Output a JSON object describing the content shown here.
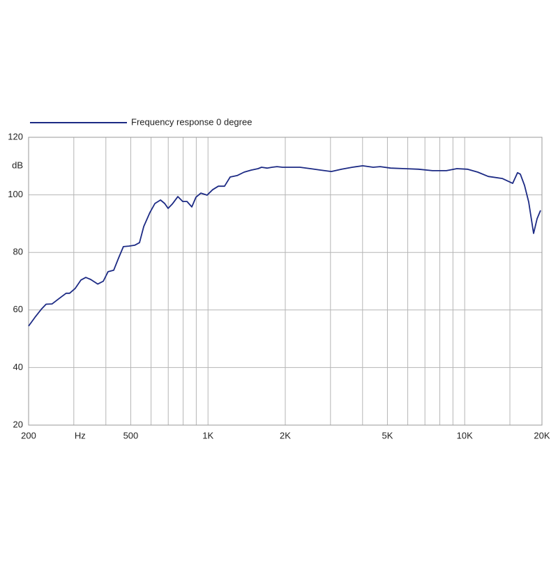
{
  "chart_data": {
    "type": "line",
    "x_scale": "log",
    "grid": true,
    "legend": "top-left",
    "y_label": "dB",
    "xlim": [
      200,
      20000
    ],
    "ylim": [
      20,
      120
    ],
    "yticks": [
      20,
      40,
      60,
      80,
      100,
      120
    ],
    "xticks": [
      200,
      {
        "value": 300,
        "label": "Hz"
      },
      {
        "value": 400,
        "label": null
      },
      500,
      {
        "value": 600,
        "label": null
      },
      {
        "value": 700,
        "label": null
      },
      {
        "value": 800,
        "label": null
      },
      {
        "value": 900,
        "label": null
      },
      {
        "value": 1000,
        "label": "1K"
      },
      {
        "value": 2000,
        "label": "2K"
      },
      {
        "value": 3000,
        "label": null
      },
      {
        "value": 4000,
        "label": null
      },
      {
        "value": 5000,
        "label": "5K"
      },
      {
        "value": 6000,
        "label": null
      },
      {
        "value": 7000,
        "label": null
      },
      {
        "value": 8000,
        "label": null
      },
      {
        "value": 9000,
        "label": null
      },
      {
        "value": 10000,
        "label": "10K"
      },
      {
        "value": 15000,
        "label": null
      },
      {
        "value": 20000,
        "label": "20K"
      }
    ],
    "x": [
      200,
      212,
      225,
      234,
      247,
      263,
      280,
      289,
      304,
      320,
      334,
      349,
      372,
      391,
      408,
      429,
      448,
      468,
      492,
      518,
      541,
      562,
      594,
      621,
      653,
      678,
      699,
      726,
      763,
      797,
      828,
      865,
      898,
      938,
      992,
      1043,
      1097,
      1160,
      1220,
      1299,
      1383,
      1472,
      1567,
      1617,
      1699,
      1776,
      1856,
      1950,
      2076,
      2281,
      2506,
      2752,
      3022,
      3320,
      3648,
      4006,
      4400,
      4686,
      5146,
      5830,
      6608,
      7488,
      8488,
      9324,
      10240,
      11246,
      12356,
      14002,
      15378,
      16070,
      16478,
      17108,
      17762,
      18556,
      19146,
      19752
    ],
    "series": [
      {
        "name": "Frequency response 0 degree",
        "color": "#1c2a84",
        "values": [
          54.4,
          57.5,
          60.4,
          62,
          62.1,
          64,
          65.8,
          65.8,
          67.5,
          70.4,
          71.3,
          70.6,
          69,
          70,
          73.3,
          73.8,
          78,
          82,
          82.2,
          82.5,
          83.4,
          89,
          93.9,
          97,
          98.2,
          97,
          95.3,
          96.8,
          99.4,
          97.7,
          97.7,
          95.8,
          99.2,
          100.6,
          99.9,
          101.8,
          103,
          103,
          106.2,
          106.7,
          107.9,
          108.6,
          109.1,
          109.6,
          109.3,
          109.6,
          109.8,
          109.6,
          109.6,
          109.6,
          109.1,
          108.6,
          108.1,
          108.9,
          109.6,
          110.1,
          109.6,
          109.8,
          109.3,
          109.1,
          108.9,
          108.4,
          108.4,
          109.1,
          108.9,
          107.9,
          106.4,
          105.7,
          104,
          107.7,
          107.2,
          103.3,
          97.5,
          86.6,
          91.7,
          94.6
        ]
      }
    ]
  }
}
